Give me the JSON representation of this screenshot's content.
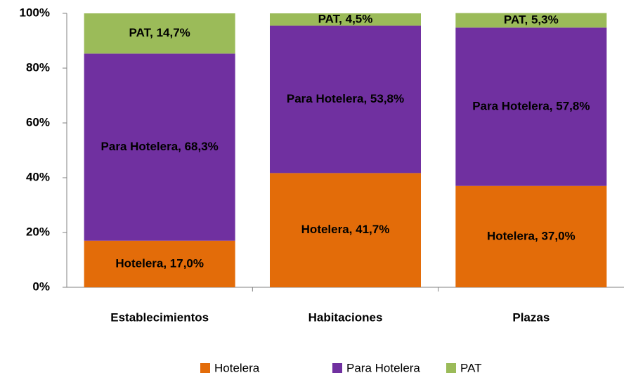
{
  "chart_data": {
    "type": "stacked_bar",
    "categories": [
      "Establecimientos",
      "Habitaciones",
      "Plazas"
    ],
    "series": [
      {
        "name": "Hotelera",
        "color": "#e36c09",
        "values": [
          17.0,
          41.7,
          37.0
        ],
        "value_labels": [
          "Hotelera, 17,0%",
          "Hotelera, 41,7%",
          "Hotelera, 37,0%"
        ]
      },
      {
        "name": "Para Hotelera",
        "color": "#7030a0",
        "values": [
          68.3,
          53.8,
          57.8
        ],
        "value_labels": [
          "Para Hotelera, 68,3%",
          "Para Hotelera, 53,8%",
          "Para Hotelera, 57,8%"
        ]
      },
      {
        "name": "PAT",
        "color": "#9bbb59",
        "values": [
          14.7,
          4.5,
          5.3
        ],
        "value_labels": [
          "PAT, 14,7%",
          "PAT, 4,5%",
          "PAT, 5,3%"
        ]
      }
    ],
    "ylim": [
      0,
      100
    ],
    "yticks": [
      {
        "value": 0,
        "label": "0%"
      },
      {
        "value": 20,
        "label": "20%"
      },
      {
        "value": 40,
        "label": "40%"
      },
      {
        "value": 60,
        "label": "60%"
      },
      {
        "value": 80,
        "label": "80%"
      },
      {
        "value": 100,
        "label": "100%"
      }
    ],
    "legend": "bottom",
    "grid": false
  }
}
